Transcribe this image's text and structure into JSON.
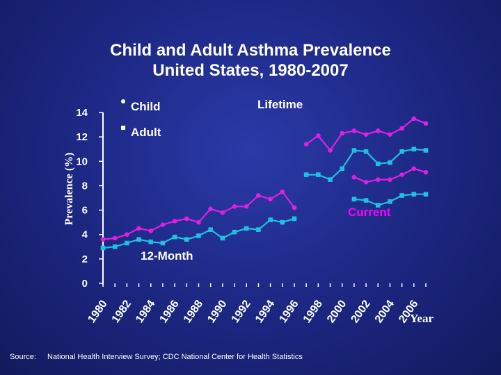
{
  "title_line1": "Child and Adult Asthma Prevalence",
  "title_line2": "United States, 1980-2007",
  "source_label": "Source:",
  "source_text": "National Health Interview Survey; CDC National Center for Health Statistics",
  "colors": {
    "child": "#e020e0",
    "adult": "#20c0e0",
    "text": "#ffffff",
    "current_label": "#ff00ff"
  },
  "chart_data": {
    "type": "line",
    "title": "Child and Adult Asthma Prevalence United States, 1980-2007",
    "xlabel": "Year",
    "ylabel": "Prevalence (%)",
    "ylim": [
      0,
      14
    ],
    "xlim": [
      1980,
      2007
    ],
    "yticks": [
      0,
      2,
      4,
      6,
      8,
      10,
      12,
      14
    ],
    "xtick_labels": [
      1980,
      1982,
      1984,
      1986,
      1988,
      1990,
      1992,
      1994,
      1996,
      1998,
      2000,
      2002,
      2004,
      2006
    ],
    "legend": [
      {
        "label": "Child",
        "marker": "circle"
      },
      {
        "label": "Adult",
        "marker": "square"
      }
    ],
    "annotations": [
      "Lifetime",
      "Current",
      "12-Month"
    ],
    "series": [
      {
        "name": "Child",
        "segment": "12-Month",
        "x": [
          1980,
          1981,
          1982,
          1983,
          1984,
          1985,
          1986,
          1987,
          1988,
          1989,
          1990,
          1991,
          1992,
          1993,
          1994,
          1995,
          1996
        ],
        "y": [
          3.6,
          3.7,
          4.0,
          4.5,
          4.3,
          4.8,
          5.1,
          5.3,
          5.0,
          6.1,
          5.8,
          6.3,
          6.3,
          7.2,
          6.9,
          7.5,
          6.2
        ]
      },
      {
        "name": "Adult",
        "segment": "12-Month",
        "x": [
          1980,
          1981,
          1982,
          1983,
          1984,
          1985,
          1986,
          1987,
          1988,
          1989,
          1990,
          1991,
          1992,
          1993,
          1994,
          1995,
          1996
        ],
        "y": [
          2.9,
          3.0,
          3.3,
          3.6,
          3.4,
          3.3,
          3.8,
          3.6,
          3.9,
          4.4,
          3.7,
          4.2,
          4.5,
          4.4,
          5.2,
          5.0,
          5.3
        ]
      },
      {
        "name": "Child",
        "segment": "Lifetime",
        "x": [
          1997,
          1998,
          1999,
          2000,
          2001,
          2002,
          2003,
          2004,
          2005,
          2006,
          2007
        ],
        "y": [
          11.4,
          12.1,
          10.9,
          12.3,
          12.5,
          12.2,
          12.5,
          12.2,
          12.7,
          13.5,
          13.1
        ]
      },
      {
        "name": "Adult",
        "segment": "Lifetime",
        "x": [
          1997,
          1998,
          1999,
          2000,
          2001,
          2002,
          2003,
          2004,
          2005,
          2006,
          2007
        ],
        "y": [
          8.9,
          8.9,
          8.5,
          9.4,
          10.9,
          10.8,
          9.8,
          9.9,
          10.8,
          11.0,
          10.9
        ]
      },
      {
        "name": "Child",
        "segment": "Current",
        "x": [
          2001,
          2002,
          2003,
          2004,
          2005,
          2006,
          2007
        ],
        "y": [
          8.7,
          8.3,
          8.5,
          8.5,
          8.9,
          9.4,
          9.1
        ]
      },
      {
        "name": "Adult",
        "segment": "Current",
        "x": [
          2001,
          2002,
          2003,
          2004,
          2005,
          2006,
          2007
        ],
        "y": [
          6.9,
          6.8,
          6.4,
          6.7,
          7.2,
          7.3,
          7.3
        ]
      }
    ]
  }
}
